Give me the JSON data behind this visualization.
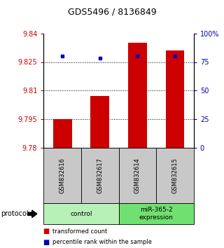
{
  "title": "GDS5496 / 8136849",
  "samples": [
    "GSM832616",
    "GSM832617",
    "GSM832614",
    "GSM832615"
  ],
  "red_values": [
    9.795,
    9.807,
    9.835,
    9.831
  ],
  "blue_values": [
    9.828,
    9.827,
    9.828,
    9.828
  ],
  "ymin": 9.78,
  "ymax": 9.84,
  "yticks_left": [
    9.78,
    9.795,
    9.81,
    9.825,
    9.84
  ],
  "yticks_right": [
    0,
    25,
    50,
    75,
    100
  ],
  "yticks_right_labels": [
    "0",
    "25",
    "50",
    "75",
    "100%"
  ],
  "groups": [
    {
      "label": "control",
      "samples": [
        0,
        1
      ],
      "color": "#b8f0b8"
    },
    {
      "label": "miR-365-2\nexpression",
      "samples": [
        2,
        3
      ],
      "color": "#70e070"
    }
  ],
  "protocol_label": "protocol",
  "legend_red": "transformed count",
  "legend_blue": "percentile rank within the sample",
  "bar_color": "#cc0000",
  "blue_color": "#0000bb",
  "tick_color_left": "#cc0000",
  "tick_color_right": "#0000bb",
  "sample_box_color": "#c8c8c8",
  "bar_width": 0.5
}
